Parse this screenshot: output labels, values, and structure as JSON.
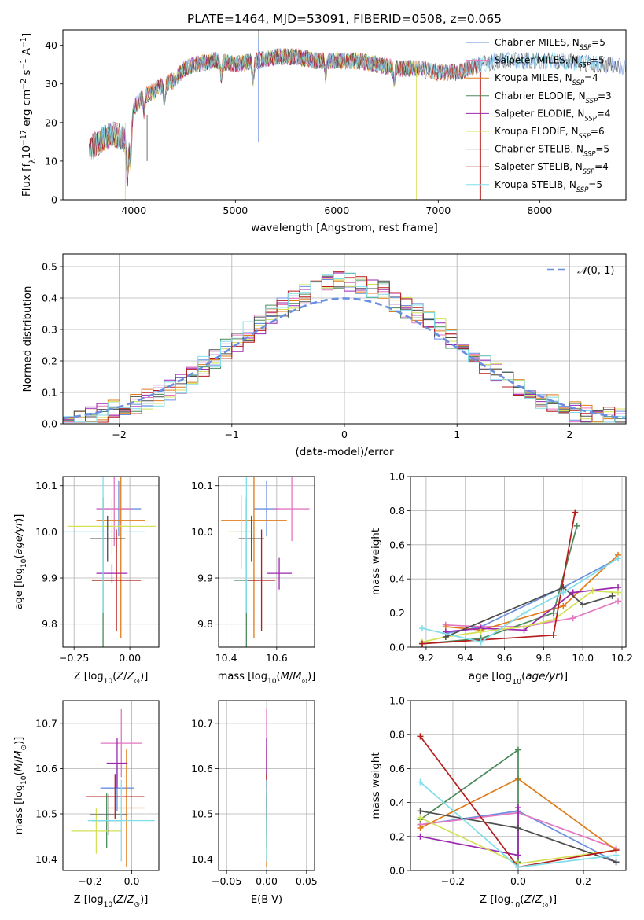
{
  "figure_title": "PLATE=1464, MJD=53091, FIBERID=0508, z=0.065",
  "colors": {
    "Chabrier MILES": "#6b8fe0",
    "Salpeter MILES": "#e377c2",
    "Kroupa MILES": "#e07b1a",
    "Chabrier ELODIE": "#4a8a5a",
    "Salpeter ELODIE": "#9c27b0",
    "Kroupa ELODIE": "#d4e157",
    "Chabrier STELIB": "#4d4d4d",
    "Salpeter STELIB": "#b71c1c",
    "Kroupa STELIB": "#80deea",
    "normal": "#6a8ee0"
  },
  "chart_data": [
    {
      "id": "spectrum",
      "type": "line",
      "title": "PLATE=1464, MJD=53091, FIBERID=0508, z=0.065",
      "xlabel": "wavelength [Angstrom, rest frame]",
      "ylabel": "Flux [f_λ 10^-17 erg cm^-2 s^-1 A^-1]",
      "xlim": [
        3300,
        8850
      ],
      "ylim": [
        0,
        44
      ],
      "xticks": [
        4000,
        5000,
        6000,
        7000,
        8000
      ],
      "yticks": [
        0,
        10,
        20,
        30,
        40
      ],
      "grid": false,
      "legend_position": "top-right",
      "continuum": {
        "x": [
          3560,
          3700,
          3800,
          3900,
          3950,
          4000,
          4100,
          4200,
          4300,
          4400,
          4500,
          4600,
          4800,
          5000,
          5200,
          5400,
          5600,
          5800,
          6000,
          6200,
          6400,
          6600,
          6800,
          7000,
          7200,
          7400,
          7600,
          7800,
          8000,
          8200,
          8400,
          8600,
          8800
        ],
        "y": [
          13,
          16,
          17,
          16,
          14,
          24,
          27,
          28,
          30,
          31,
          34,
          35,
          36,
          35,
          36,
          37,
          37,
          36,
          36,
          36,
          35,
          34,
          34,
          33,
          33,
          35,
          36,
          36,
          36,
          36,
          35.5,
          35,
          34.5
        ]
      },
      "series": [
        {
          "name": "Chabrier MILES, N_SSP=5",
          "label_main": "Chabrier MILES, N",
          "label_sub": "SSP",
          "label_suffix": "=5",
          "xmax": 8850
        },
        {
          "name": "Salpeter MILES, N_SSP=5",
          "label_main": "Salpeter MILES, N",
          "label_sub": "SSP",
          "label_suffix": "=5",
          "xmax": 7400
        },
        {
          "name": "Kroupa MILES, N_SSP=4",
          "label_main": "Kroupa MILES, N",
          "label_sub": "SSP",
          "label_suffix": "=4",
          "xmax": 7400
        },
        {
          "name": "Chabrier ELODIE, N_SSP=3",
          "label_main": "Chabrier ELODIE, N",
          "label_sub": "SSP",
          "label_suffix": "=3",
          "xmax": 6800
        },
        {
          "name": "Salpeter ELODIE, N_SSP=4",
          "label_main": "Salpeter ELODIE, N",
          "label_sub": "SSP",
          "label_suffix": "=4",
          "xmax": 6800
        },
        {
          "name": "Kroupa ELODIE, N_SSP=6",
          "label_main": "Kroupa ELODIE, N",
          "label_sub": "SSP",
          "label_suffix": "=6",
          "xmax": 6800
        },
        {
          "name": "Chabrier STELIB, N_SSP=5",
          "label_main": "Chabrier STELIB, N",
          "label_sub": "SSP",
          "label_suffix": "=5",
          "xmax": 8800
        },
        {
          "name": "Salpeter STELIB, N_SSP=4",
          "label_main": "Salpeter STELIB, N",
          "label_sub": "SSP",
          "label_suffix": "=4",
          "xmax": 7400
        },
        {
          "name": "Kroupa STELIB, N_SSP=5",
          "label_main": "Kroupa STELIB, N",
          "label_sub": "SSP",
          "label_suffix": "=5",
          "xmax": 8600
        }
      ]
    },
    {
      "id": "residuals",
      "type": "histogram",
      "xlabel": "(data-model)/error",
      "ylabel": "Normed distribution",
      "xlim": [
        -2.5,
        2.5
      ],
      "ylim": [
        0,
        0.54
      ],
      "xticks": [
        -2,
        -1,
        0,
        1,
        2
      ],
      "yticks": [
        0.0,
        0.1,
        0.2,
        0.3,
        0.4,
        0.5
      ],
      "grid": true,
      "legend_position": "top-right",
      "bin_edges_start": -2.5,
      "bin_width": 0.1,
      "reference_curve": {
        "label": "N(0,1)",
        "mean": 0,
        "sigma": 1
      },
      "values_shape": [
        0.02,
        0.02,
        0.03,
        0.03,
        0.04,
        0.05,
        0.06,
        0.08,
        0.09,
        0.11,
        0.13,
        0.16,
        0.18,
        0.21,
        0.24,
        0.26,
        0.29,
        0.32,
        0.35,
        0.37,
        0.39,
        0.41,
        0.42,
        0.44,
        0.46,
        0.45,
        0.44,
        0.43,
        0.42,
        0.39,
        0.37,
        0.35,
        0.33,
        0.3,
        0.27,
        0.24,
        0.22,
        0.19,
        0.16,
        0.14,
        0.11,
        0.1,
        0.08,
        0.06,
        0.05,
        0.04,
        0.03,
        0.03,
        0.02,
        0.02
      ]
    },
    {
      "id": "z-age",
      "type": "errorbar",
      "xlabel": "Z [log10(Z/Z_sun)]",
      "ylabel": "age [log10(age/yr)]",
      "xlim": [
        -0.3,
        0.13
      ],
      "ylim": [
        9.75,
        10.12
      ],
      "xticks": [
        -0.25,
        0.0
      ],
      "xtick_labels": [
        "−0.25",
        "0.00"
      ],
      "yticks": [
        9.8,
        9.9,
        10.0,
        10.1
      ],
      "grid": true,
      "points": [
        {
          "series": "Chabrier MILES",
          "x": -0.05,
          "y": 10.05,
          "xerr": 0.1,
          "yerr": 0.06
        },
        {
          "series": "Salpeter MILES",
          "x": -0.07,
          "y": 10.05,
          "xerr": 0.08,
          "yerr": 0.08
        },
        {
          "series": "Kroupa MILES",
          "x": -0.04,
          "y": 10.025,
          "xerr": 0.11,
          "yerr": 0.255
        },
        {
          "series": "Chabrier ELODIE",
          "x": -0.12,
          "y": 9.895,
          "xerr": 0.05,
          "yerr": 0.18
        },
        {
          "series": "Salpeter ELODIE",
          "x": -0.08,
          "y": 9.91,
          "xerr": 0.07,
          "yerr": 0.02
        },
        {
          "series": "Kroupa ELODIE",
          "x": -0.08,
          "y": 10.012,
          "xerr": 0.2,
          "yerr": 0.06
        },
        {
          "series": "Chabrier STELIB",
          "x": -0.1,
          "y": 9.985,
          "xerr": 0.08,
          "yerr": 0.05
        },
        {
          "series": "Salpeter STELIB",
          "x": -0.06,
          "y": 9.895,
          "xerr": 0.11,
          "yerr": 0.11
        },
        {
          "series": "Kroupa STELIB",
          "x": -0.12,
          "y": 10.0,
          "xerr": 0.19,
          "yerr": 0.175
        }
      ]
    },
    {
      "id": "mass-age",
      "type": "errorbar",
      "xlabel": "mass [log10(M/M_sun)]",
      "ylabel": "",
      "xlim": [
        10.37,
        10.75
      ],
      "ylim": [
        9.75,
        10.12
      ],
      "xticks": [
        10.4,
        10.6
      ],
      "xtick_labels": [
        "10.4",
        "10.6"
      ],
      "yticks": [
        9.8,
        9.9,
        10.0,
        10.1
      ],
      "grid": true,
      "points": [
        {
          "series": "Chabrier MILES",
          "x": 10.56,
          "y": 10.05,
          "xerr": 0.05,
          "yerr": 0.06
        },
        {
          "series": "Salpeter MILES",
          "x": 10.66,
          "y": 10.05,
          "xerr": 0.07,
          "yerr": 0.07
        },
        {
          "series": "Kroupa MILES",
          "x": 10.51,
          "y": 10.025,
          "xerr": 0.13,
          "yerr": 0.255
        },
        {
          "series": "Chabrier ELODIE",
          "x": 10.48,
          "y": 9.895,
          "xerr": 0.05,
          "yerr": 0.18
        },
        {
          "series": "Salpeter ELODIE",
          "x": 10.61,
          "y": 9.91,
          "xerr": 0.05,
          "yerr": 0.035
        },
        {
          "series": "Kroupa ELODIE",
          "x": 10.46,
          "y": 10.0,
          "xerr": 0.05,
          "yerr": 0.08
        },
        {
          "series": "Chabrier STELIB",
          "x": 10.5,
          "y": 9.985,
          "xerr": 0.05,
          "yerr": 0.05
        },
        {
          "series": "Salpeter STELIB",
          "x": 10.54,
          "y": 9.895,
          "xerr": 0.055,
          "yerr": 0.11
        },
        {
          "series": "Kroupa STELIB",
          "x": 10.48,
          "y": 10.0,
          "xerr": 0.04,
          "yerr": 0.175
        }
      ]
    },
    {
      "id": "weight-age",
      "type": "line",
      "xlabel": "age [log10(age/yr)]",
      "ylabel": "mass weight",
      "xlim": [
        9.12,
        10.22
      ],
      "ylim": [
        0,
        1
      ],
      "xticks": [
        9.2,
        9.4,
        9.6,
        9.8,
        10.0,
        10.2
      ],
      "yticks": [
        0.0,
        0.2,
        0.4,
        0.6,
        0.8,
        1.0
      ],
      "grid": true,
      "series": [
        {
          "name": "Chabrier MILES",
          "x": [
            9.3,
            9.48,
            9.9,
            10.18
          ],
          "y": [
            0.08,
            0.12,
            0.35,
            0.52
          ]
        },
        {
          "name": "Salpeter MILES",
          "x": [
            9.3,
            9.48,
            9.7,
            9.95,
            10.18
          ],
          "y": [
            0.13,
            0.12,
            0.12,
            0.17,
            0.27
          ]
        },
        {
          "name": "Kroupa MILES",
          "x": [
            9.3,
            9.48,
            9.9,
            10.18
          ],
          "y": [
            0.12,
            0.1,
            0.24,
            0.54
          ]
        },
        {
          "name": "Chabrier ELODIE",
          "x": [
            9.18,
            9.48,
            9.85,
            9.97
          ],
          "y": [
            0.02,
            0.05,
            0.2,
            0.71
          ]
        },
        {
          "name": "Salpeter ELODIE",
          "x": [
            9.3,
            9.48,
            9.7,
            9.95,
            10.18
          ],
          "y": [
            0.09,
            0.11,
            0.1,
            0.32,
            0.35
          ]
        },
        {
          "name": "Kroupa ELODIE",
          "x": [
            9.18,
            9.3,
            9.48,
            9.7,
            9.85,
            10.05,
            10.18
          ],
          "y": [
            0.03,
            0.06,
            0.09,
            0.12,
            0.16,
            0.33,
            0.32
          ]
        },
        {
          "name": "Chabrier STELIB",
          "x": [
            9.3,
            9.9,
            10.0,
            10.15
          ],
          "y": [
            0.06,
            0.35,
            0.25,
            0.3
          ]
        },
        {
          "name": "Salpeter STELIB",
          "x": [
            9.18,
            9.85,
            9.96
          ],
          "y": [
            0.02,
            0.07,
            0.79
          ]
        },
        {
          "name": "Kroupa STELIB",
          "x": [
            9.18,
            9.48,
            9.7,
            9.9,
            10.18
          ],
          "y": [
            0.11,
            0.03,
            0.2,
            0.32,
            0.52
          ]
        }
      ]
    },
    {
      "id": "z-mass",
      "type": "errorbar",
      "xlabel": "Z [log10(Z/Z_sun)]",
      "ylabel": "mass [log10(M/M_sun)]",
      "xlim": [
        -0.33,
        0.13
      ],
      "ylim": [
        10.375,
        10.75
      ],
      "xticks": [
        -0.2,
        0.0
      ],
      "xtick_labels": [
        "−0.2",
        "0.0"
      ],
      "yticks": [
        10.4,
        10.5,
        10.6,
        10.7
      ],
      "grid": true,
      "points": [
        {
          "series": "Chabrier MILES",
          "x": -0.07,
          "y": 10.557,
          "xerr": 0.08,
          "yerr": 0.05
        },
        {
          "series": "Salpeter MILES",
          "x": -0.05,
          "y": 10.656,
          "xerr": 0.1,
          "yerr": 0.075
        },
        {
          "series": "Kroupa MILES",
          "x": -0.025,
          "y": 10.513,
          "xerr": 0.09,
          "yerr": 0.13
        },
        {
          "series": "Chabrier ELODIE",
          "x": -0.12,
          "y": 10.485,
          "xerr": 0.07,
          "yerr": 0.06
        },
        {
          "series": "Salpeter ELODIE",
          "x": -0.07,
          "y": 10.612,
          "xerr": 0.05,
          "yerr": 0.055
        },
        {
          "series": "Kroupa ELODIE",
          "x": -0.17,
          "y": 10.462,
          "xerr": 0.12,
          "yerr": 0.05
        },
        {
          "series": "Chabrier STELIB",
          "x": -0.11,
          "y": 10.498,
          "xerr": 0.09,
          "yerr": 0.045
        },
        {
          "series": "Salpeter STELIB",
          "x": -0.08,
          "y": 10.538,
          "xerr": 0.14,
          "yerr": 0.05
        },
        {
          "series": "Kroupa STELIB",
          "x": -0.05,
          "y": 10.485,
          "xerr": 0.16,
          "yerr": 0.09
        }
      ]
    },
    {
      "id": "ebv-mass",
      "type": "errorbar",
      "xlabel": "E(B-V)",
      "ylabel": "",
      "xlim": [
        -0.06,
        0.06
      ],
      "ylim": [
        10.375,
        10.75
      ],
      "xticks": [
        -0.05,
        0.0,
        0.05
      ],
      "xtick_labels": [
        "−0.05",
        "0.00",
        "0.05"
      ],
      "yticks": [
        10.4,
        10.5,
        10.6,
        10.7
      ],
      "grid": true,
      "points": [
        {
          "series": "Chabrier MILES",
          "x": 0,
          "y": 10.557,
          "xerr": 0,
          "yerr": 0.05
        },
        {
          "series": "Salpeter MILES",
          "x": 0,
          "y": 10.656,
          "xerr": 0,
          "yerr": 0.075
        },
        {
          "series": "Kroupa MILES",
          "x": 0,
          "y": 10.513,
          "xerr": 0,
          "yerr": 0.13
        },
        {
          "series": "Chabrier ELODIE",
          "x": 0,
          "y": 10.485,
          "xerr": 0,
          "yerr": 0.06
        },
        {
          "series": "Salpeter ELODIE",
          "x": 0,
          "y": 10.612,
          "xerr": 0,
          "yerr": 0.055
        },
        {
          "series": "Kroupa ELODIE",
          "x": 0,
          "y": 10.462,
          "xerr": 0,
          "yerr": 0.05
        },
        {
          "series": "Chabrier STELIB",
          "x": 0,
          "y": 10.498,
          "xerr": 0,
          "yerr": 0.045
        },
        {
          "series": "Salpeter STELIB",
          "x": 0,
          "y": 10.538,
          "xerr": 0,
          "yerr": 0.05
        },
        {
          "series": "Kroupa STELIB",
          "x": 0,
          "y": 10.485,
          "xerr": 0,
          "yerr": 0.09
        }
      ]
    },
    {
      "id": "weight-z",
      "type": "line",
      "xlabel": "Z [log10(Z/Z_sun)]",
      "ylabel": "mass weight",
      "xlim": [
        -0.33,
        0.33
      ],
      "ylim": [
        0,
        1
      ],
      "xticks": [
        -0.2,
        0.0,
        0.2
      ],
      "xtick_labels": [
        "−0.2",
        "0.0",
        "0.2"
      ],
      "yticks": [
        0.0,
        0.2,
        0.4,
        0.6,
        0.8,
        1.0
      ],
      "grid": true,
      "series": [
        {
          "name": "Chabrier MILES",
          "x": [
            -0.3,
            0.0,
            0.3
          ],
          "y": [
            0.27,
            0.35,
            0.05
          ]
        },
        {
          "name": "Salpeter MILES",
          "x": [
            -0.3,
            0.0,
            0.3
          ],
          "y": [
            0.27,
            0.34,
            0.13
          ]
        },
        {
          "name": "Kroupa MILES",
          "x": [
            -0.3,
            0.0,
            0.3
          ],
          "y": [
            0.25,
            0.54,
            0.12
          ]
        },
        {
          "name": "Chabrier ELODIE",
          "x": [
            -0.3,
            0.0,
            0.0
          ],
          "y": [
            0.3,
            0.71,
            0.05
          ]
        },
        {
          "name": "Salpeter ELODIE",
          "x": [
            -0.3,
            0.0,
            0.0
          ],
          "y": [
            0.2,
            0.09,
            0.37
          ]
        },
        {
          "name": "Kroupa ELODIE",
          "x": [
            -0.3,
            0.0,
            0.3
          ],
          "y": [
            0.31,
            0.04,
            0.12
          ]
        },
        {
          "name": "Chabrier STELIB",
          "x": [
            -0.3,
            0.0,
            0.3
          ],
          "y": [
            0.35,
            0.25,
            0.05
          ]
        },
        {
          "name": "Salpeter STELIB",
          "x": [
            -0.3,
            0.0,
            0.3
          ],
          "y": [
            0.79,
            0.02,
            0.12
          ]
        },
        {
          "name": "Kroupa STELIB",
          "x": [
            -0.3,
            0.0,
            0.3
          ],
          "y": [
            0.52,
            0.02,
            0.09
          ]
        }
      ]
    }
  ]
}
